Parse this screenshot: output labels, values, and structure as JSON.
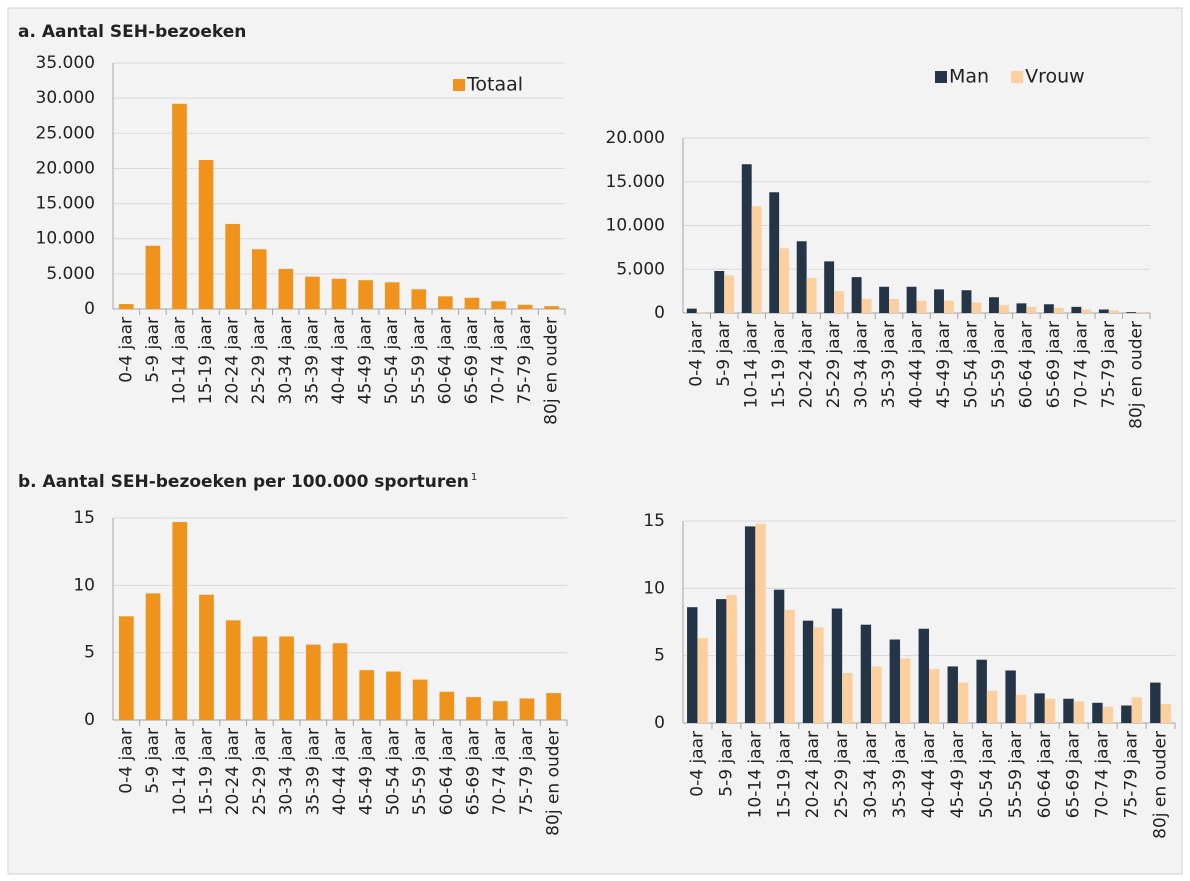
{
  "chart_data": [
    {
      "type": "bar",
      "title": "a. Aantal SEH-bezoeken",
      "categories": [
        "0-4 jaar",
        "5-9 jaar",
        "10-14 jaar",
        "15-19 jaar",
        "20-24 jaar",
        "25-29 jaar",
        "30-34 jaar",
        "35-39 jaar",
        "40-44 jaar",
        "45-49 jaar",
        "50-54 jaar",
        "55-59 jaar",
        "60-64 jaar",
        "65-69 jaar",
        "70-74 jaar",
        "75-79 jaar",
        "80j en ouder"
      ],
      "series": [
        {
          "name": "Totaal",
          "color": "#f0931c",
          "values": [
            700,
            9000,
            29200,
            21200,
            12100,
            8500,
            5700,
            4600,
            4300,
            4100,
            3800,
            2800,
            1800,
            1600,
            1100,
            600,
            400
          ]
        }
      ],
      "ylim": [
        0,
        35000
      ],
      "yticks": [
        0,
        {
          "value": 5000,
          "label": "5.000"
        },
        {
          "value": 10000,
          "label": "10.000"
        },
        {
          "value": 15000,
          "label": "15.000"
        },
        {
          "value": 20000,
          "label": "20.000"
        },
        {
          "value": 25000,
          "label": "25.000"
        },
        {
          "value": 30000,
          "label": "30.000"
        },
        {
          "value": 35000,
          "label": "35.000"
        }
      ],
      "grid": true,
      "legend": "upper right"
    },
    {
      "type": "bar",
      "categories": [
        "0-4 jaar",
        "5-9 jaar",
        "10-14 jaar",
        "15-19 jaar",
        "20-24 jaar",
        "25-29 jaar",
        "30-34 jaar",
        "35-39 jaar",
        "40-44 jaar",
        "45-49 jaar",
        "50-54 jaar",
        "55-59 jaar",
        "60-64 jaar",
        "65-69 jaar",
        "70-74 jaar",
        "75-79 jaar",
        "80j en ouder"
      ],
      "series": [
        {
          "name": "Man",
          "color": "#243548",
          "values": [
            500,
            4800,
            17000,
            13800,
            8200,
            5900,
            4100,
            3000,
            3000,
            2700,
            2600,
            1800,
            1100,
            1000,
            700,
            400,
            100
          ]
        },
        {
          "name": "Vrouw",
          "color": "#fbcf9e",
          "values": [
            100,
            4300,
            12200,
            7400,
            4000,
            2500,
            1600,
            1600,
            1400,
            1400,
            1200,
            900,
            700,
            600,
            400,
            300,
            100
          ]
        }
      ],
      "ylim": [
        0,
        20000
      ],
      "yticks": [
        0,
        {
          "value": 5000,
          "label": "5.000"
        },
        {
          "value": 10000,
          "label": "10.000"
        },
        {
          "value": 15000,
          "label": "15.000"
        },
        {
          "value": 20000,
          "label": "20.000"
        }
      ],
      "grid": true,
      "legend": "top"
    },
    {
      "type": "bar",
      "title": "b. Aantal SEH-bezoeken per 100.000 sporturen",
      "title_note": "1",
      "categories": [
        "0-4 jaar",
        "5-9 jaar",
        "10-14 jaar",
        "15-19 jaar",
        "20-24 jaar",
        "25-29 jaar",
        "30-34 jaar",
        "35-39 jaar",
        "40-44 jaar",
        "45-49 jaar",
        "50-54 jaar",
        "55-59 jaar",
        "60-64 jaar",
        "65-69 jaar",
        "70-74 jaar",
        "75-79 jaar",
        "80j en ouder"
      ],
      "series": [
        {
          "color": "#f0931c",
          "values": [
            7.7,
            9.4,
            14.7,
            9.3,
            7.4,
            6.2,
            6.2,
            5.6,
            5.7,
            3.7,
            3.6,
            3.0,
            2.1,
            1.7,
            1.4,
            1.6,
            2.0
          ]
        }
      ],
      "ylim": [
        0,
        15
      ],
      "yticks": [
        0,
        5,
        10,
        15
      ],
      "grid": true
    },
    {
      "type": "bar",
      "categories": [
        "0-4 jaar",
        "5-9 jaar",
        "10-14 jaar",
        "15-19 jaar",
        "20-24 jaar",
        "25-29 jaar",
        "30-34 jaar",
        "35-39 jaar",
        "40-44 jaar",
        "45-49 jaar",
        "50-54 jaar",
        "55-59 jaar",
        "60-64 jaar",
        "65-69 jaar",
        "70-74 jaar",
        "75-79 jaar",
        "80j en ouder"
      ],
      "series": [
        {
          "color": "#243548",
          "values": [
            8.6,
            9.2,
            14.6,
            9.9,
            7.6,
            8.5,
            7.3,
            6.2,
            7.0,
            4.2,
            4.7,
            3.9,
            2.2,
            1.8,
            1.5,
            1.3,
            3.0
          ]
        },
        {
          "color": "#fbcf9e",
          "values": [
            6.3,
            9.5,
            14.8,
            8.4,
            7.1,
            3.7,
            4.2,
            4.8,
            4.0,
            3.0,
            2.4,
            2.1,
            1.8,
            1.6,
            1.2,
            1.9,
            1.4
          ]
        }
      ],
      "ylim": [
        0,
        15
      ],
      "yticks": [
        0,
        5,
        10,
        15
      ],
      "grid": true
    }
  ]
}
